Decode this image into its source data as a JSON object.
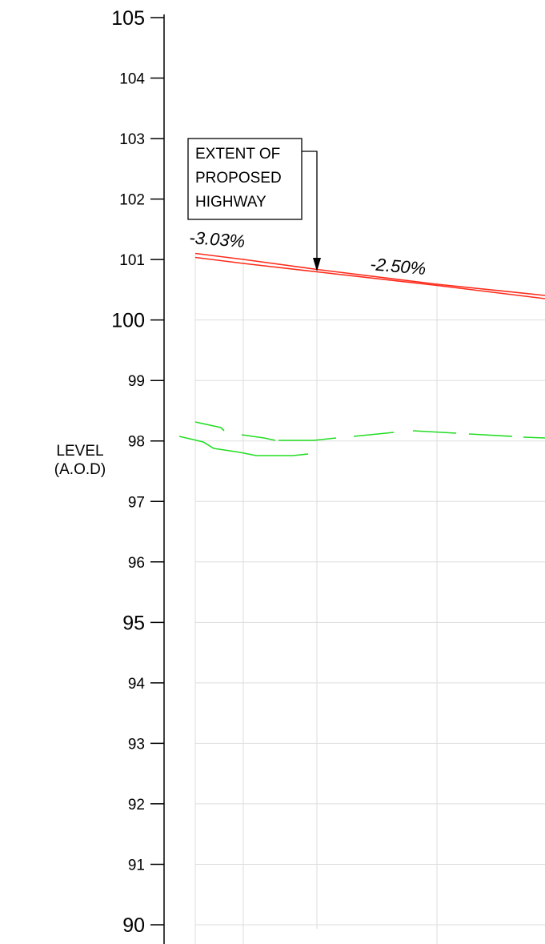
{
  "axis": {
    "label_line1": "LEVEL",
    "label_line2": "(A.O.D)",
    "ticks": [
      {
        "value": 105,
        "label": "105",
        "major": true
      },
      {
        "value": 104,
        "label": "104",
        "major": false
      },
      {
        "value": 103,
        "label": "103",
        "major": false
      },
      {
        "value": 102,
        "label": "102",
        "major": false
      },
      {
        "value": 101,
        "label": "101",
        "major": false
      },
      {
        "value": 100,
        "label": "100",
        "major": true
      },
      {
        "value": 99,
        "label": "99",
        "major": false
      },
      {
        "value": 98,
        "label": "98",
        "major": false
      },
      {
        "value": 97,
        "label": "97",
        "major": false
      },
      {
        "value": 96,
        "label": "96",
        "major": false
      },
      {
        "value": 95,
        "label": "95",
        "major": true
      },
      {
        "value": 94,
        "label": "94",
        "major": false
      },
      {
        "value": 93,
        "label": "93",
        "major": false
      },
      {
        "value": 92,
        "label": "92",
        "major": false
      },
      {
        "value": 91,
        "label": "91",
        "major": false
      },
      {
        "value": 90,
        "label": "90",
        "major": true
      }
    ],
    "range": [
      90,
      105
    ]
  },
  "callout": {
    "line1": "EXTENT OF",
    "line2": "PROPOSED",
    "line3": "HIGHWAY"
  },
  "grades": {
    "first": "-3.03%",
    "second": "-2.50%"
  },
  "colors": {
    "proposed": "#ff2a1a",
    "existing": "#22dd22",
    "grid": "#dddddd",
    "axis": "#000000"
  }
}
